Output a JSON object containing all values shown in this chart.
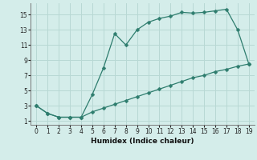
{
  "xlabel": "Humidex (Indice chaleur)",
  "x_upper": [
    0,
    1,
    2,
    3,
    4,
    5,
    6,
    7,
    8,
    9,
    10,
    11,
    12,
    13,
    14,
    15,
    16,
    17,
    18,
    19
  ],
  "y_upper": [
    3.0,
    2.0,
    1.5,
    1.5,
    1.5,
    4.5,
    8.0,
    12.5,
    11.0,
    13.0,
    14.0,
    14.5,
    14.8,
    15.3,
    15.2,
    15.3,
    15.5,
    15.7,
    13.0,
    8.5
  ],
  "x_lower": [
    0,
    1,
    2,
    3,
    4,
    5,
    6,
    7,
    8,
    9,
    10,
    11,
    12,
    13,
    14,
    15,
    16,
    17,
    18,
    19
  ],
  "y_lower": [
    3.0,
    2.0,
    1.5,
    1.5,
    1.5,
    2.2,
    2.7,
    3.2,
    3.7,
    4.2,
    4.7,
    5.2,
    5.7,
    6.2,
    6.7,
    7.0,
    7.5,
    7.8,
    8.2,
    8.5
  ],
  "line_color": "#2E7D6E",
  "bg_color": "#D4EDEA",
  "grid_color": "#B8D8D4",
  "xlim": [
    -0.5,
    19.5
  ],
  "ylim": [
    0.5,
    16.5
  ],
  "xticks": [
    0,
    1,
    2,
    3,
    4,
    5,
    6,
    7,
    8,
    9,
    10,
    11,
    12,
    13,
    14,
    15,
    16,
    17,
    18,
    19
  ],
  "yticks": [
    1,
    3,
    5,
    7,
    9,
    11,
    13,
    15
  ],
  "label_fontsize": 6.5,
  "tick_fontsize": 5.5
}
